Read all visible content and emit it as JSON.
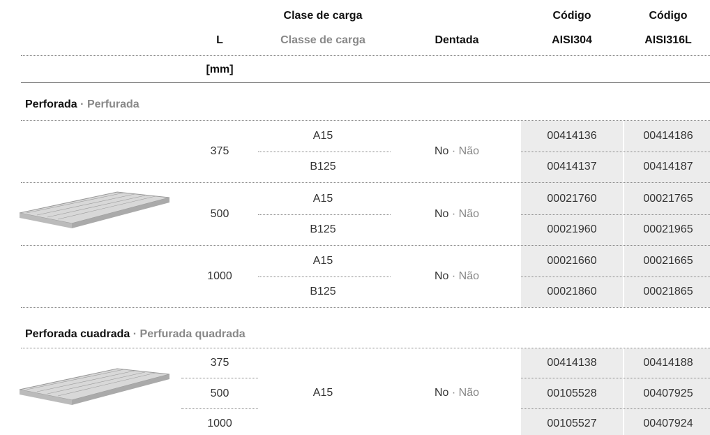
{
  "header": {
    "l": "L",
    "clase_es": "Clase de carga",
    "clase_pt": "Classe de carga",
    "dentada": "Dentada",
    "codigo_a": "Código",
    "aisi_a": "AISI304",
    "codigo_b": "Código",
    "aisi_b": "AISI316L",
    "unit": "[mm]"
  },
  "sections": [
    {
      "title_es": "Perforada",
      "sep": "·",
      "title_pt": "Perfurada",
      "groups": [
        {
          "l": "375",
          "dentada_es": "No",
          "dentada_sep": "·",
          "dentada_pt": "Não",
          "rows": [
            {
              "clase": "A15",
              "aisi304": "00414136",
              "aisi316l": "00414186"
            },
            {
              "clase": "B125",
              "aisi304": "00414137",
              "aisi316l": "00414187"
            }
          ]
        },
        {
          "l": "500",
          "dentada_es": "No",
          "dentada_sep": "·",
          "dentada_pt": "Não",
          "rows": [
            {
              "clase": "A15",
              "aisi304": "00021760",
              "aisi316l": "00021765"
            },
            {
              "clase": "B125",
              "aisi304": "00021960",
              "aisi316l": "00021965"
            }
          ]
        },
        {
          "l": "1000",
          "dentada_es": "No",
          "dentada_sep": "·",
          "dentada_pt": "Não",
          "rows": [
            {
              "clase": "A15",
              "aisi304": "00021660",
              "aisi316l": "00021665"
            },
            {
              "clase": "B125",
              "aisi304": "00021860",
              "aisi316l": "00021865"
            }
          ]
        }
      ]
    },
    {
      "title_es": "Perforada cuadrada",
      "sep": "·",
      "title_pt": "Perfurada quadrada",
      "clase": "A15",
      "dentada_es": "No",
      "dentada_sep": "·",
      "dentada_pt": "Não",
      "rows": [
        {
          "l": "375",
          "aisi304": "00414138",
          "aisi316l": "00414188"
        },
        {
          "l": "500",
          "aisi304": "00105528",
          "aisi316l": "00407925"
        },
        {
          "l": "1000",
          "aisi304": "00105527",
          "aisi316l": "00407924"
        }
      ]
    }
  ]
}
